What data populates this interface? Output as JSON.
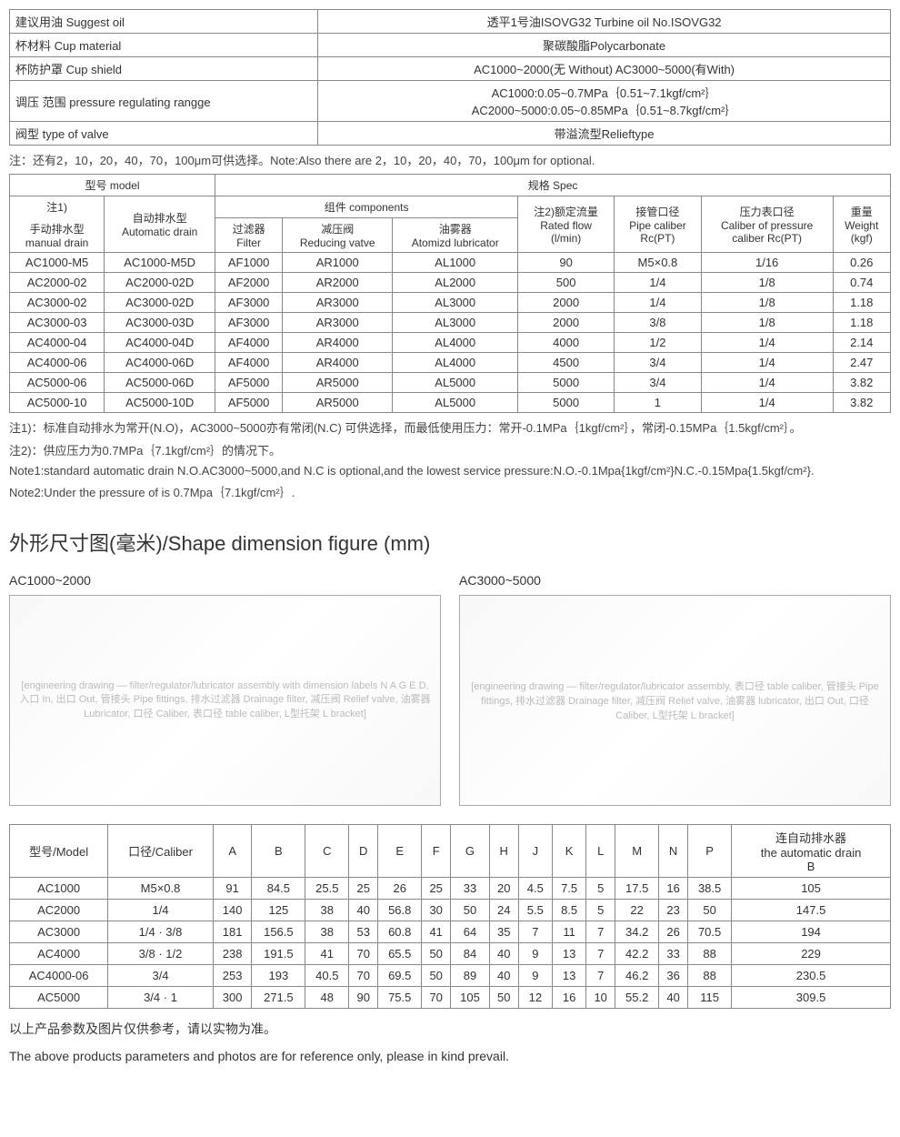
{
  "t1": {
    "rows": [
      [
        "建议用油 Suggest oil",
        "透平1号油ISOVG32 Turbine oil No.ISOVG32"
      ],
      [
        "杯材料 Cup material",
        "聚碳酸脂Polycarbonate"
      ],
      [
        "杯防护罩 Cup shield",
        "AC1000~2000(无 Without) AC3000~5000(有With)"
      ],
      [
        "调压 范围 pressure regulating rangge",
        "AC1000:0.05~0.7MPa｛0.51~7.1kgf/cm²｝\nAC2000~5000:0.05~0.85MPa｛0.51~8.7kgf/cm²｝"
      ],
      [
        "阀型 type of valve",
        "带溢流型Relieftype"
      ]
    ]
  },
  "note1": "注：还有2，10，20，40，70，100μm可供选择。Note:Also there are 2，10，20，40，70，100μm for optional.",
  "t2": {
    "h_model": "型号 model",
    "h_spec": "规格 Spec",
    "h_note1": "注1)",
    "h_manual": "手动排水型\nmanual drain",
    "h_auto": "自动排水型\nAutomatic drain",
    "h_comp": "组件 components",
    "h_filter": "过滤器\nFilter",
    "h_reduce": "减压阀\nReducing vatve",
    "h_atom": "油雾器\nAtomizd lubricator",
    "h_flow": "注2)额定流量\nRated flow\n(l/min)",
    "h_pipe": "接管口径\nPipe caliber\nRc(PT)",
    "h_press": "压力表口径\nCaliber of pressure\ncaliber Rc(PT)",
    "h_weight": "重量\nWeight\n(kgf)",
    "rows": [
      [
        "AC1000-M5",
        "AC1000-M5D",
        "AF1000",
        "AR1000",
        "AL1000",
        "90",
        "M5×0.8",
        "1/16",
        "0.26"
      ],
      [
        "AC2000-02",
        "AC2000-02D",
        "AF2000",
        "AR2000",
        "AL2000",
        "500",
        "1/4",
        "1/8",
        "0.74"
      ],
      [
        "AC3000-02",
        "AC3000-02D",
        "AF3000",
        "AR3000",
        "AL3000",
        "2000",
        "1/4",
        "1/8",
        "1.18"
      ],
      [
        "AC3000-03",
        "AC3000-03D",
        "AF3000",
        "AR3000",
        "AL3000",
        "2000",
        "3/8",
        "1/8",
        "1.18"
      ],
      [
        "AC4000-04",
        "AC4000-04D",
        "AF4000",
        "AR4000",
        "AL4000",
        "4000",
        "1/2",
        "1/4",
        "2.14"
      ],
      [
        "AC4000-06",
        "AC4000-06D",
        "AF4000",
        "AR4000",
        "AL4000",
        "4500",
        "3/4",
        "1/4",
        "2.47"
      ],
      [
        "AC5000-06",
        "AC5000-06D",
        "AF5000",
        "AR5000",
        "AL5000",
        "5000",
        "3/4",
        "1/4",
        "3.82"
      ],
      [
        "AC5000-10",
        "AC5000-10D",
        "AF5000",
        "AR5000",
        "AL5000",
        "5000",
        "1",
        "1/4",
        "3.82"
      ]
    ]
  },
  "notes2": [
    "注1)：标准自动排水为常开(N.O)，AC3000~5000亦有常闭(N.C) 可供选择，而最低使用压力：常开-0.1MPa｛1kgf/cm²｝，常闭-0.15MPa｛1.5kgf/cm²｝。",
    "注2)：供应压力为0.7MPa｛7.1kgf/cm²｝的情况下。",
    "Note1:standard automatic drain N.O.AC3000~5000,and N.C is optional,and the lowest service pressure:N.O.-0.1Mpa{1kgf/cm²}N.C.-0.15Mpa{1.5kgf/cm²}.",
    "Note2:Under the pressure of is 0.7Mpa｛7.1kgf/cm²｝."
  ],
  "section_title": "外形尺寸图(毫米)/Shape dimension figure (mm)",
  "dia": {
    "left_label": "AC1000~2000",
    "right_label": "AC3000~5000",
    "placeholder_l": "[engineering drawing — filter/regulator/lubricator assembly with dimension labels N A G E D, 入口 In, 出口 Out, 管接头 Pipe fittings, 排水过滤器 Drainage filter, 减压阀 Relief valve, 油雾器 Lubricator, 口径 Caliber, 表口径 table caliber, L型托架 L bracket]",
    "placeholder_r": "[engineering drawing — filter/regulator/lubricator assembly, 表口径 table caliber, 管接头 Pipe fittings, 排水过滤器 Drainage filter, 减压阀 Relief valve, 油雾器 lubricator, 出口 Out, 口径 Caliber, L型托架 L bracket]"
  },
  "t3": {
    "headers": [
      "型号/Model",
      "口径/Caliber",
      "A",
      "B",
      "C",
      "D",
      "E",
      "F",
      "G",
      "H",
      "J",
      "K",
      "L",
      "M",
      "N",
      "P",
      "连自动排水器\nthe automatic drain\nB"
    ],
    "rows": [
      [
        "AC1000",
        "M5×0.8",
        "91",
        "84.5",
        "25.5",
        "25",
        "26",
        "25",
        "33",
        "20",
        "4.5",
        "7.5",
        "5",
        "17.5",
        "16",
        "38.5",
        "105"
      ],
      [
        "AC2000",
        "1/4",
        "140",
        "125",
        "38",
        "40",
        "56.8",
        "30",
        "50",
        "24",
        "5.5",
        "8.5",
        "5",
        "22",
        "23",
        "50",
        "147.5"
      ],
      [
        "AC3000",
        "1/4 · 3/8",
        "181",
        "156.5",
        "38",
        "53",
        "60.8",
        "41",
        "64",
        "35",
        "7",
        "11",
        "7",
        "34.2",
        "26",
        "70.5",
        "194"
      ],
      [
        "AC4000",
        "3/8 · 1/2",
        "238",
        "191.5",
        "41",
        "70",
        "65.5",
        "50",
        "84",
        "40",
        "9",
        "13",
        "7",
        "42.2",
        "33",
        "88",
        "229"
      ],
      [
        "AC4000-06",
        "3/4",
        "253",
        "193",
        "40.5",
        "70",
        "69.5",
        "50",
        "89",
        "40",
        "9",
        "13",
        "7",
        "46.2",
        "36",
        "88",
        "230.5"
      ],
      [
        "AC5000",
        "3/4 · 1",
        "300",
        "271.5",
        "48",
        "90",
        "75.5",
        "70",
        "105",
        "50",
        "12",
        "16",
        "10",
        "55.2",
        "40",
        "115",
        "309.5"
      ]
    ]
  },
  "footer": [
    "以上产品参数及图片仅供参考，请以实物为准。",
    "The above products parameters and photos are for reference only, please in kind prevail."
  ]
}
